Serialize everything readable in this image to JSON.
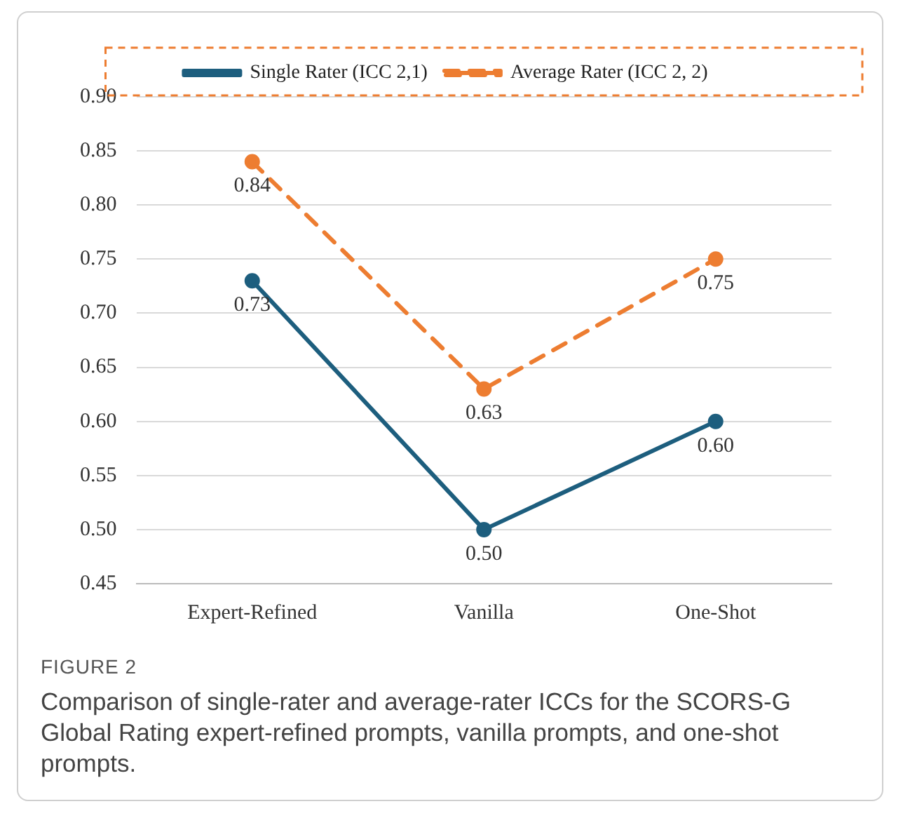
{
  "chart_data": {
    "type": "line",
    "categories": [
      "Expert-Refined",
      "Vanilla",
      "One-Shot"
    ],
    "series": [
      {
        "name": "Single Rater (ICC 2,1)",
        "color": "#1d5e7e",
        "values": [
          0.73,
          0.5,
          0.6
        ],
        "value_labels": [
          "0.73",
          "0.50",
          "0.60"
        ],
        "line_style": "solid"
      },
      {
        "name": "Average Rater (ICC 2, 2)",
        "color": "#ed7d31",
        "values": [
          0.84,
          0.63,
          0.75
        ],
        "value_labels": [
          "0.84",
          "0.63",
          "0.75"
        ],
        "line_style": "dashed"
      }
    ],
    "ylim": [
      0.45,
      0.9
    ],
    "yticks": [
      {
        "value": 0.45,
        "label": "0.45"
      },
      {
        "value": 0.5,
        "label": "0.50"
      },
      {
        "value": 0.55,
        "label": "0.55"
      },
      {
        "value": 0.6,
        "label": "0.60"
      },
      {
        "value": 0.65,
        "label": "0.65"
      },
      {
        "value": 0.7,
        "label": "0.70"
      },
      {
        "value": 0.75,
        "label": "0.75"
      },
      {
        "value": 0.8,
        "label": "0.80"
      },
      {
        "value": 0.85,
        "label": "0.85"
      },
      {
        "value": 0.9,
        "label": "0.90"
      }
    ],
    "grid": "y",
    "legend": "top",
    "marker": "circle",
    "annotations": [
      "FIGURE 2",
      "Comparison of single-rater and average-rater ICCs for the SCORS-G Global Rating expert-refined prompts, vanilla prompts, and one-shot prompts."
    ]
  }
}
